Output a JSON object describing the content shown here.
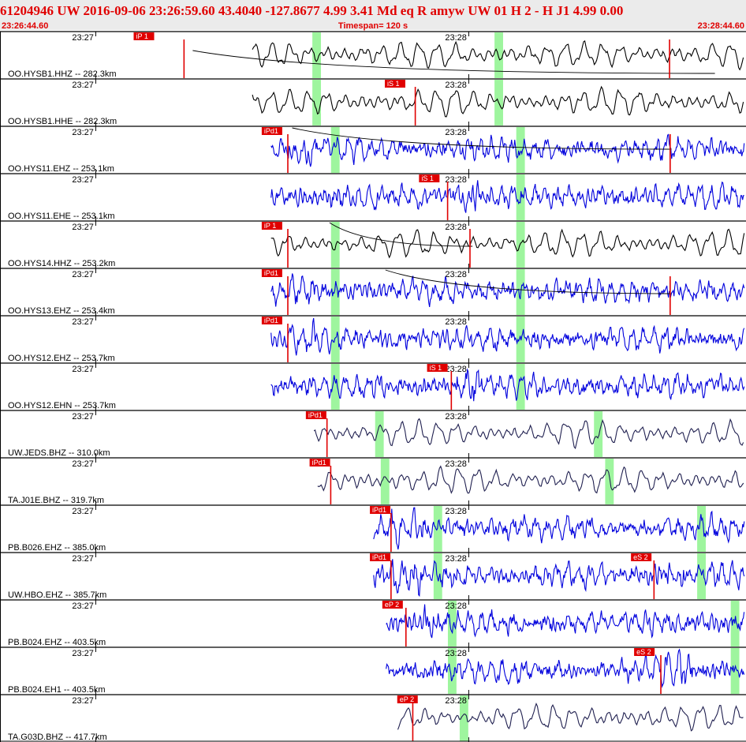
{
  "header": {
    "title": "61204946 UW 2016-09-06 23:26:59.60   43.4040 -127.8677   4.99  3.41 Md   eq   R amyw     UW 01  H   2  -  H J1    4.99  0.00",
    "start_time": "23:26:44.60",
    "timespan": "Timespan= 120 s",
    "end_time": "23:28:44.60"
  },
  "chart_data": {
    "type": "line",
    "x_unit": "s",
    "x_range": [
      0,
      120
    ],
    "minute_ticks": [
      {
        "label": "23:27",
        "t": 15.4
      },
      {
        "label": "23:28",
        "t": 75.4
      }
    ],
    "colors": {
      "background": "#ffffff",
      "header_band": "#ebebeb",
      "header_text": "#e00000",
      "pick_box": "#e00000",
      "pick_line": "#e00000",
      "window": "#9ef59e",
      "trace_black": "#000000",
      "trace_blue": "#0000dd",
      "trace_navy": "#202050",
      "separator": "#000000"
    },
    "channels": [
      {
        "label": "OO.HYSB1.HHZ -- 282.3km",
        "color": "black",
        "t_start": 40.6,
        "style": "long",
        "windows": [
          [
            50.5,
            51.5
          ],
          [
            79.8,
            80.8
          ]
        ],
        "picks": [
          {
            "text": "iP 1",
            "t": 21.5,
            "t_line": 29.6
          },
          {
            "text": "",
            "t": 107.7,
            "t_line": 107.7
          }
        ],
        "curve": [
          [
            31,
            44,
            115,
            51
          ]
        ]
      },
      {
        "label": "OO.HYSB1.HHE -- 282.3km",
        "color": "black",
        "t_start": 40.6,
        "style": "long",
        "windows": [
          [
            50.5,
            51.5
          ],
          [
            79.8,
            80.8
          ]
        ],
        "picks": [
          {
            "text": "iS 1",
            "t": 61.9,
            "t_line": 66.8
          }
        ]
      },
      {
        "label": "OO.HYS11.EHZ -- 253.1km",
        "color": "blue",
        "t_start": 43.6,
        "style": "short",
        "windows": [
          [
            53.5,
            54.5
          ],
          [
            83.3,
            84.3
          ]
        ],
        "picks": [
          {
            "text": "iPd1",
            "t": 42.1,
            "t_line": 46.3
          },
          {
            "text": "",
            "t": 107.8,
            "t_line": 107.8
          }
        ],
        "curve": [
          [
            47,
            0,
            108,
            27
          ]
        ]
      },
      {
        "label": "OO.HYS11.EHE -- 253.1km",
        "color": "blue",
        "t_start": 43.6,
        "style": "short",
        "windows": [
          [
            83.3,
            84.3
          ]
        ],
        "picks": [
          {
            "text": "iS 1",
            "t": 67.4,
            "t_line": 72.0
          }
        ]
      },
      {
        "label": "OO.HYS14.HHZ -- 253.2km",
        "color": "black",
        "t_start": 43.6,
        "style": "long",
        "windows": [
          [
            53.5,
            54.5
          ],
          [
            83.3,
            84.3
          ]
        ],
        "picks": [
          {
            "text": "iP 1",
            "t": 42.1,
            "t_line": 46.3
          },
          {
            "text": "",
            "t": 75.6,
            "t_line": 75.6
          }
        ],
        "curve": [
          [
            53,
            0,
            76,
            30
          ]
        ]
      },
      {
        "label": "OO.HYS13.EHZ -- 253.4km",
        "color": "blue",
        "t_start": 43.6,
        "style": "short",
        "windows": [
          [
            53.5,
            54.5
          ],
          [
            83.3,
            84.3
          ]
        ],
        "picks": [
          {
            "text": "iPd1",
            "t": 42.1,
            "t_line": 46.3
          },
          {
            "text": "",
            "t": 107.8,
            "t_line": 107.8
          }
        ],
        "curve": [
          [
            62,
            0,
            108,
            30
          ]
        ]
      },
      {
        "label": "OO.HYS12.EHZ -- 253.7km",
        "color": "blue",
        "t_start": 43.6,
        "style": "short",
        "windows": [
          [
            53.5,
            54.5
          ],
          [
            83.3,
            84.3
          ]
        ],
        "picks": [
          {
            "text": "iPd1",
            "t": 42.1,
            "t_line": 46.3
          }
        ]
      },
      {
        "label": "OO.HYS12.EHN -- 253.7km",
        "color": "blue",
        "t_start": 43.6,
        "style": "short",
        "windows": [
          [
            53.5,
            54.5
          ],
          [
            83.3,
            84.3
          ]
        ],
        "picks": [
          {
            "text": "iS 1",
            "t": 68.7,
            "t_line": 72.6
          }
        ]
      },
      {
        "label": "UW.JEDS.BHZ -- 310.0km",
        "color": "navy",
        "t_start": 50.5,
        "style": "long",
        "windows": [
          [
            60.6,
            61.6
          ],
          [
            95.8,
            96.8
          ]
        ],
        "picks": [
          {
            "text": "iPd1",
            "t": 49.2,
            "t_line": 52.6
          }
        ]
      },
      {
        "label": "TA.J01E.BHZ -- 319.7km",
        "color": "navy",
        "t_start": 51.1,
        "style": "long",
        "windows": [
          [
            61.5,
            62.5
          ],
          [
            97.6,
            98.6
          ]
        ],
        "picks": [
          {
            "text": "iPd1",
            "t": 49.8,
            "t_line": 53.2
          }
        ]
      },
      {
        "label": "PB.B026.EHZ -- 385.0km",
        "color": "blue",
        "t_start": 60.1,
        "style": "short",
        "windows": [
          [
            70.0,
            71.0
          ],
          [
            112.4,
            113.4
          ]
        ],
        "picks": [
          {
            "text": "iPd1",
            "t": 59.5,
            "t_line": 62.9
          }
        ]
      },
      {
        "label": "UW.HBO.EHZ -- 385.7km",
        "color": "blue",
        "t_start": 60.1,
        "style": "short",
        "windows": [
          [
            70.0,
            71.0
          ],
          [
            112.4,
            113.4
          ]
        ],
        "picks": [
          {
            "text": "iPd1",
            "t": 59.5,
            "t_line": 62.9
          },
          {
            "text": "eS 2",
            "t": 101.5,
            "t_line": 105.2
          }
        ]
      },
      {
        "label": "PB.B024.EHZ -- 403.5km",
        "color": "blue",
        "t_start": 62.1,
        "style": "short",
        "windows": [
          [
            72.3,
            73.3
          ],
          [
            117.8,
            118.8
          ]
        ],
        "picks": [
          {
            "text": "eP 2",
            "t": 61.5,
            "t_line": 65.3
          }
        ]
      },
      {
        "label": "PB.B024.EH1 -- 403.5km",
        "color": "blue",
        "t_start": 62.1,
        "style": "short",
        "windows": [
          [
            72.3,
            73.3
          ],
          [
            117.8,
            118.8
          ]
        ],
        "picks": [
          {
            "text": "eS 2",
            "t": 102.0,
            "t_line": 106.3
          }
        ]
      },
      {
        "label": "TA.G03D.BHZ -- 417.7km",
        "color": "navy",
        "t_start": 64.0,
        "style": "long",
        "windows": [
          [
            74.2,
            75.2
          ]
        ],
        "picks": [
          {
            "text": "eP 2",
            "t": 63.9,
            "t_line": 66.4
          }
        ]
      }
    ]
  }
}
